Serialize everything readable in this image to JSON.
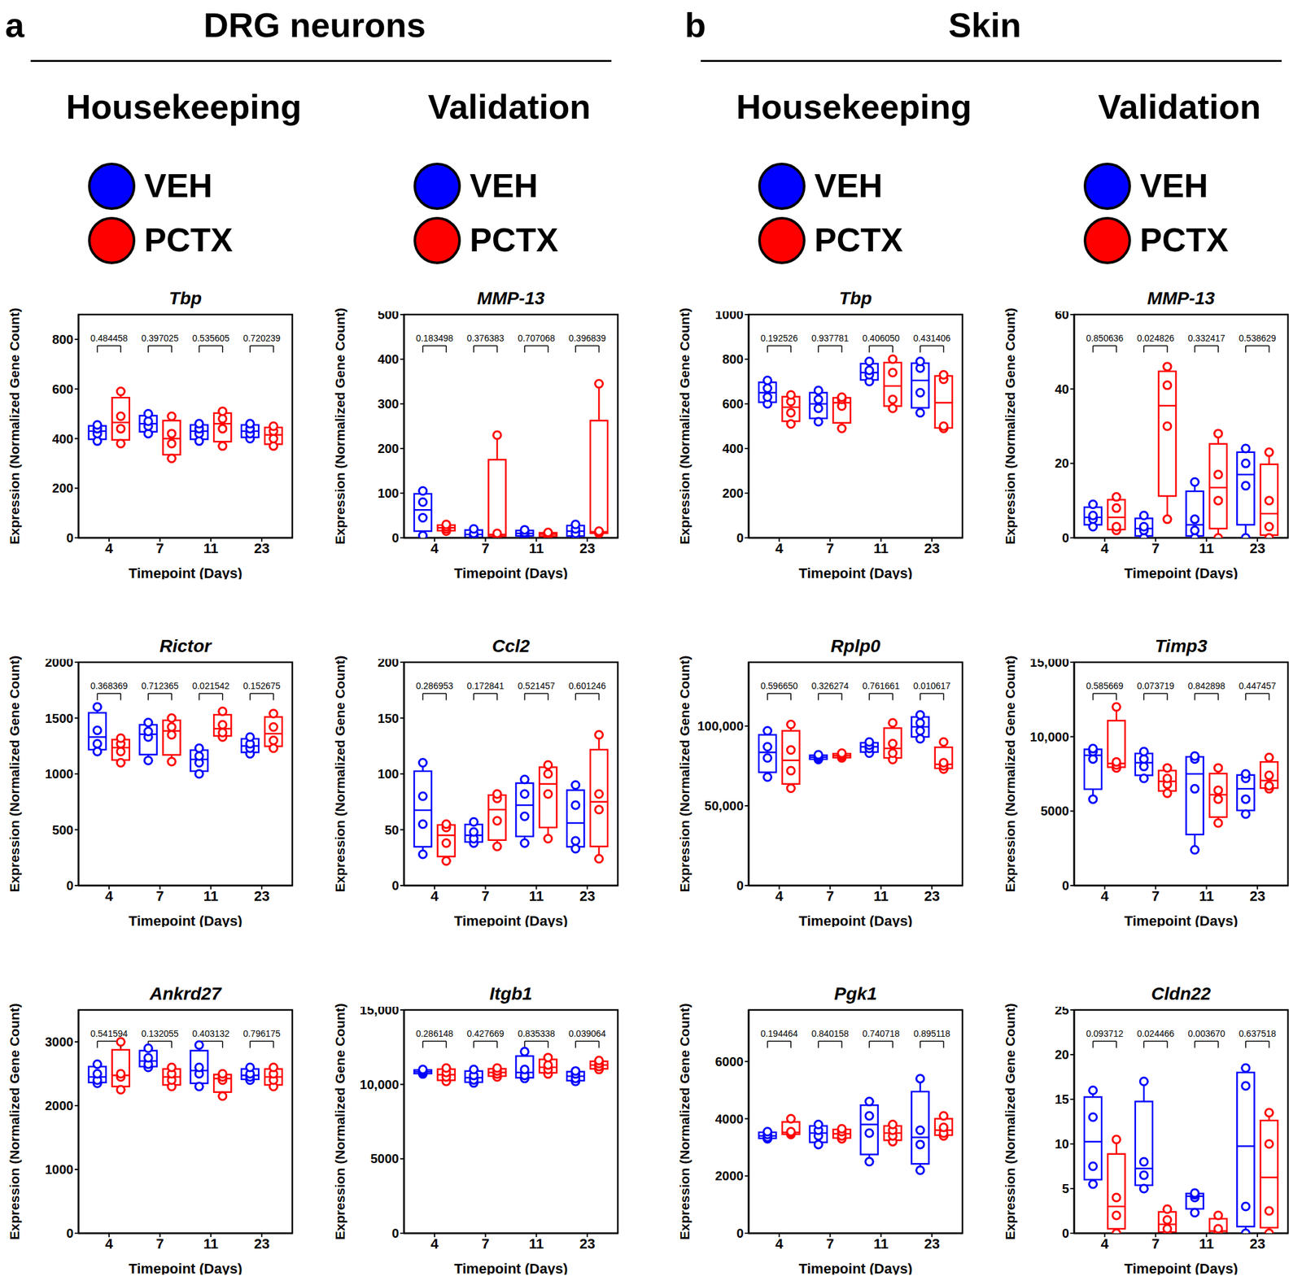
{
  "panels": [
    {
      "label": "a",
      "title": "DRG neurons",
      "columns": [
        "Housekeeping",
        "Validation"
      ]
    },
    {
      "label": "b",
      "title": "Skin",
      "columns": [
        "Housekeeping",
        "Validation"
      ]
    }
  ],
  "chart_data": [
    {
      "type": "box",
      "title": "Tbp",
      "categories": [
        "4",
        "7",
        "11",
        "23"
      ],
      "xlabel": "Timepoint (Days)",
      "ylabel": "Expression (Normalized Gene Count)",
      "ylim": [
        0,
        900
      ],
      "yticks": [
        0,
        200,
        400,
        600,
        800
      ],
      "p_values": [
        "0.484458",
        "0.397025",
        "0.535605",
        "0.720239"
      ],
      "series": [
        {
          "name": "VEH",
          "color": "#0000ff",
          "values": [
            [
              390,
              420,
              440,
              455
            ],
            [
              420,
              450,
              470,
              500
            ],
            [
              390,
              420,
              440,
              460
            ],
            [
              400,
              420,
              440,
              460
            ]
          ]
        },
        {
          "name": "PCTX",
          "color": "#ff0000",
          "values": [
            [
              380,
              440,
              490,
              590
            ],
            [
              320,
              380,
              420,
              490
            ],
            [
              370,
              440,
              480,
              510
            ],
            [
              370,
              400,
              430,
              450
            ]
          ]
        }
      ]
    },
    {
      "type": "box",
      "title": "Rictor",
      "categories": [
        "4",
        "7",
        "11",
        "23"
      ],
      "xlabel": "Timepoint (Days)",
      "ylabel": "Expression (Normalized Gene Count)",
      "ylim": [
        0,
        2000
      ],
      "yticks": [
        0,
        500,
        1000,
        1500,
        2000
      ],
      "p_values": [
        "0.368369",
        "0.712365",
        "0.021542",
        "0.152675"
      ],
      "series": [
        {
          "name": "VEH",
          "color": "#0000ff",
          "values": [
            [
              1200,
              1270,
              1390,
              1600
            ],
            [
              1120,
              1330,
              1380,
              1460
            ],
            [
              1000,
              1100,
              1160,
              1230
            ],
            [
              1180,
              1230,
              1270,
              1330
            ]
          ]
        },
        {
          "name": "PCTX",
          "color": "#ff0000",
          "values": [
            [
              1100,
              1200,
              1270,
              1320
            ],
            [
              1110,
              1350,
              1420,
              1500
            ],
            [
              1330,
              1370,
              1440,
              1560
            ],
            [
              1230,
              1300,
              1420,
              1540
            ]
          ]
        }
      ]
    },
    {
      "type": "box",
      "title": "Ankrd27",
      "categories": [
        "4",
        "7",
        "11",
        "23"
      ],
      "xlabel": "Timepoint (Days)",
      "ylabel": "Expression (Normalized Gene Count)",
      "ylim": [
        0,
        3500
      ],
      "yticks": [
        0,
        1000,
        2000,
        3000
      ],
      "p_values": [
        "0.541594",
        "0.132055",
        "0.403132",
        "0.796175"
      ],
      "series": [
        {
          "name": "VEH",
          "color": "#0000ff",
          "values": [
            [
              2350,
              2400,
              2500,
              2650
            ],
            [
              2600,
              2650,
              2750,
              2900
            ],
            [
              2300,
              2500,
              2600,
              2950
            ],
            [
              2400,
              2450,
              2500,
              2600
            ]
          ]
        },
        {
          "name": "PCTX",
          "color": "#ff0000",
          "values": [
            [
              2250,
              2450,
              2500,
              3000
            ],
            [
              2300,
              2400,
              2500,
              2600
            ],
            [
              2150,
              2400,
              2450,
              2500
            ],
            [
              2300,
              2400,
              2500,
              2600
            ]
          ]
        }
      ]
    },
    {
      "type": "box",
      "title": "MMP-13",
      "categories": [
        "4",
        "7",
        "11",
        "23"
      ],
      "xlabel": "Timepoint (Days)",
      "ylabel": "Expression (Normalized Gene Count)",
      "ylim": [
        0,
        500
      ],
      "yticks": [
        0,
        100,
        200,
        300,
        400,
        500
      ],
      "p_values": [
        "0.183498",
        "0.376383",
        "0.707068",
        "0.396839"
      ],
      "series": [
        {
          "name": "VEH",
          "color": "#0000ff",
          "values": [
            [
              5,
              45,
              80,
              105
            ],
            [
              0,
              5,
              10,
              20
            ],
            [
              3,
              8,
              12,
              18
            ],
            [
              2,
              10,
              20,
              30
            ]
          ]
        },
        {
          "name": "PCTX",
          "color": "#ff0000",
          "values": [
            [
              15,
              20,
              25,
              30
            ],
            [
              3,
              5,
              10,
              230
            ],
            [
              3,
              6,
              10,
              12
            ],
            [
              10,
              12,
              15,
              345
            ]
          ]
        }
      ]
    },
    {
      "type": "box",
      "title": "Ccl2",
      "categories": [
        "4",
        "7",
        "11",
        "23"
      ],
      "xlabel": "Timepoint (Days)",
      "ylabel": "Expression (Normalized Gene Count)",
      "ylim": [
        0,
        200
      ],
      "yticks": [
        0,
        50,
        100,
        150,
        200
      ],
      "p_values": [
        "0.286953",
        "0.172841",
        "0.521457",
        "0.601246"
      ],
      "series": [
        {
          "name": "VEH",
          "color": "#0000ff",
          "values": [
            [
              28,
              55,
              80,
              110
            ],
            [
              38,
              42,
              48,
              57
            ],
            [
              38,
              62,
              82,
              95
            ],
            [
              33,
              40,
              72,
              90
            ]
          ]
        },
        {
          "name": "PCTX",
          "color": "#ff0000",
          "values": [
            [
              22,
              38,
              52,
              55
            ],
            [
              35,
              58,
              78,
              82
            ],
            [
              42,
              82,
              100,
              108
            ],
            [
              24,
              68,
              82,
              135
            ]
          ]
        }
      ]
    },
    {
      "type": "box",
      "title": "Itgb1",
      "categories": [
        "4",
        "7",
        "11",
        "23"
      ],
      "xlabel": "Timepoint (Days)",
      "ylabel": "Expression (Normalized Gene Count)",
      "ylim": [
        0,
        15000
      ],
      "yticks": [
        0,
        5000,
        {
          "value": 10000,
          "label": "10,000"
        },
        {
          "value": 15000,
          "label": "15,000"
        }
      ],
      "p_values": [
        "0.286148",
        "0.427669",
        "0.835338",
        "0.039064"
      ],
      "series": [
        {
          "name": "VEH",
          "color": "#0000ff",
          "values": [
            [
              10700,
              10800,
              10900,
              11000
            ],
            [
              10100,
              10300,
              10600,
              11000
            ],
            [
              10400,
              10600,
              11000,
              12200
            ],
            [
              10200,
              10400,
              10700,
              10900
            ]
          ]
        },
        {
          "name": "PCTX",
          "color": "#ff0000",
          "values": [
            [
              10200,
              10500,
              10800,
              11100
            ],
            [
              10500,
              10700,
              10900,
              11100
            ],
            [
              10700,
              11000,
              11300,
              11800
            ],
            [
              11000,
              11200,
              11400,
              11600
            ]
          ]
        }
      ]
    },
    {
      "type": "box",
      "title": "Tbp",
      "categories": [
        "4",
        "7",
        "11",
        "23"
      ],
      "xlabel": "Timepoint (Days)",
      "ylabel": "Expression (Normalized Gene Count)",
      "ylim": [
        0,
        1000
      ],
      "yticks": [
        0,
        200,
        400,
        600,
        800,
        1000
      ],
      "p_values": [
        "0.192526",
        "0.937781",
        "0.406050",
        "0.431406"
      ],
      "series": [
        {
          "name": "VEH",
          "color": "#0000ff",
          "values": [
            [
              600,
              630,
              670,
              705
            ],
            [
              520,
              580,
              620,
              660
            ],
            [
              700,
              730,
              750,
              790
            ],
            [
              560,
              650,
              760,
              790
            ]
          ]
        },
        {
          "name": "PCTX",
          "color": "#ff0000",
          "values": [
            [
              510,
              560,
              610,
              640
            ],
            [
              490,
              590,
              620,
              630
            ],
            [
              580,
              620,
              740,
              800
            ],
            [
              490,
              500,
              710,
              730
            ]
          ]
        }
      ]
    },
    {
      "type": "box",
      "title": "Rplp0",
      "categories": [
        "4",
        "7",
        "11",
        "23"
      ],
      "xlabel": "Timepoint (Days)",
      "ylabel": "Expression (Normalized Gene Count)",
      "ylim": [
        0,
        140000
      ],
      "yticks": [
        0,
        {
          "value": 50000,
          "label": "50,000"
        },
        {
          "value": 100000,
          "label": "100,000"
        }
      ],
      "p_values": [
        "0.596650",
        "0.326274",
        "0.761661",
        "0.010617"
      ],
      "series": [
        {
          "name": "VEH",
          "color": "#0000ff",
          "values": [
            [
              68000,
              80000,
              87000,
              97000
            ],
            [
              79000,
              80000,
              81000,
              82000
            ],
            [
              83000,
              86000,
              88000,
              90000
            ],
            [
              92000,
              97000,
              102000,
              107000
            ]
          ]
        },
        {
          "name": "PCTX",
          "color": "#ff0000",
          "values": [
            [
              61000,
              72000,
              85000,
              101000
            ],
            [
              80000,
              81000,
              82000,
              83000
            ],
            [
              79000,
              83000,
              89000,
              102000
            ],
            [
              73000,
              75000,
              77000,
              90000
            ]
          ]
        }
      ]
    },
    {
      "type": "box",
      "title": "Pgk1",
      "categories": [
        "4",
        "7",
        "11",
        "23"
      ],
      "xlabel": "Timepoint (Days)",
      "ylabel": "Expression (Normalized Gene Count)",
      "ylim": [
        0,
        7800
      ],
      "yticks": [
        0,
        2000,
        4000,
        6000
      ],
      "p_values": [
        "0.194464",
        "0.840158",
        "0.740718",
        "0.895118"
      ],
      "series": [
        {
          "name": "VEH",
          "color": "#0000ff",
          "values": [
            [
              3300,
              3350,
              3450,
              3550
            ],
            [
              3100,
              3400,
              3600,
              3800
            ],
            [
              2500,
              3500,
              4100,
              4600
            ],
            [
              2200,
              3100,
              3600,
              5400
            ]
          ]
        },
        {
          "name": "PCTX",
          "color": "#ff0000",
          "values": [
            [
              3450,
              3500,
              3550,
              4000
            ],
            [
              3300,
              3400,
              3550,
              3650
            ],
            [
              3200,
              3400,
              3600,
              3800
            ],
            [
              3400,
              3500,
              3700,
              4100
            ]
          ]
        }
      ]
    },
    {
      "type": "box",
      "title": "MMP-13",
      "categories": [
        "4",
        "7",
        "11",
        "23"
      ],
      "xlabel": "Timepoint (Days)",
      "ylabel": "Expression (Normalized Gene Count)",
      "ylim": [
        0,
        60
      ],
      "yticks": [
        0,
        20,
        40,
        60
      ],
      "p_values": [
        "0.850636",
        "0.024826",
        "0.332417",
        "0.538629"
      ],
      "series": [
        {
          "name": "VEH",
          "color": "#0000ff",
          "values": [
            [
              3,
              5,
              6,
              9
            ],
            [
              0,
              2,
              3,
              6
            ],
            [
              0,
              2,
              5,
              15
            ],
            [
              0,
              14,
              20,
              24
            ]
          ]
        },
        {
          "name": "PCTX",
          "color": "#ff0000",
          "values": [
            [
              2,
              3,
              8,
              11
            ],
            [
              5,
              30,
              41,
              46
            ],
            [
              0,
              10,
              17,
              28
            ],
            [
              0,
              3,
              10,
              23
            ]
          ]
        }
      ]
    },
    {
      "type": "box",
      "title": "Timp3",
      "categories": [
        "4",
        "7",
        "11",
        "23"
      ],
      "xlabel": "Timepoint (Days)",
      "ylabel": "Expression (Normalized Gene Count)",
      "ylim": [
        0,
        15000
      ],
      "yticks": [
        0,
        5000,
        {
          "value": 10000,
          "label": "10,000"
        },
        {
          "value": 15000,
          "label": "15,000"
        }
      ],
      "p_values": [
        "0.585669",
        "0.073719",
        "0.842898",
        "0.447457"
      ],
      "series": [
        {
          "name": "VEH",
          "color": "#0000ff",
          "values": [
            [
              5800,
              8500,
              9000,
              9200
            ],
            [
              7200,
              8000,
              8500,
              9000
            ],
            [
              2400,
              6500,
              8500,
              8700
            ],
            [
              4800,
              5800,
              7200,
              7500
            ]
          ]
        },
        {
          "name": "PCTX",
          "color": "#ff0000",
          "values": [
            [
              7900,
              8100,
              8300,
              12000
            ],
            [
              6200,
              6800,
              7200,
              7900
            ],
            [
              4200,
              5800,
              6400,
              7900
            ],
            [
              6500,
              6700,
              7400,
              8600
            ]
          ]
        }
      ]
    },
    {
      "type": "box",
      "title": "Cldn22",
      "categories": [
        "4",
        "7",
        "11",
        "23"
      ],
      "xlabel": "Timepoint (Days)",
      "ylabel": "Expression (Normalized Gene Count)",
      "ylim": [
        0,
        25
      ],
      "yticks": [
        0,
        5,
        10,
        15,
        20,
        25
      ],
      "p_values": [
        "0.093712",
        "0.024466",
        "0.003670",
        "0.637518"
      ],
      "series": [
        {
          "name": "VEH",
          "color": "#0000ff",
          "values": [
            [
              5.5,
              7.5,
              13,
              16
            ],
            [
              5,
              6.5,
              8,
              17
            ],
            [
              2.3,
              4,
              4.3,
              4.5
            ],
            [
              0,
              3,
              16.5,
              18.5
            ]
          ]
        },
        {
          "name": "PCTX",
          "color": "#ff0000",
          "values": [
            [
              0,
              2,
              4,
              10.5
            ],
            [
              0,
              0.5,
              1.5,
              2.7
            ],
            [
              0,
              0,
              0.5,
              2
            ],
            [
              0,
              2.5,
              10,
              13.5
            ]
          ]
        }
      ]
    }
  ]
}
